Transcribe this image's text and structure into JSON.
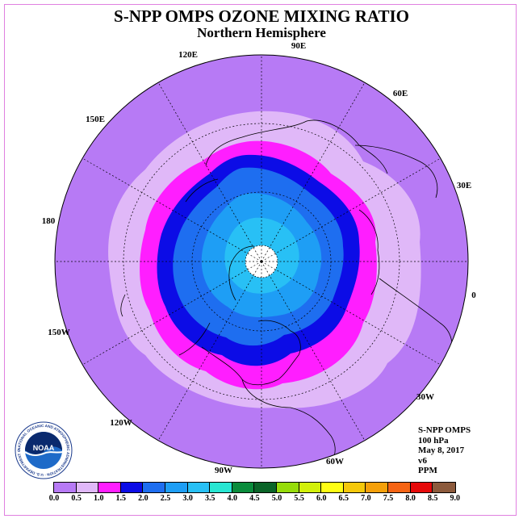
{
  "title": "S-NPP OMPS OZONE MIXING RATIO",
  "subtitle": "Northern Hemisphere",
  "longitude_labels": [
    "90E",
    "60E",
    "30E",
    "0",
    "30W",
    "60W",
    "90W",
    "120W",
    "150W",
    "180",
    "150E",
    "120E"
  ],
  "info": {
    "instrument": "S-NPP OMPS",
    "level": "100 hPa",
    "date": "May 8, 2017",
    "version": "v6",
    "units": "PPM"
  },
  "logo_text": "NOAA",
  "logo_ring_text": "NATIONAL OCEANIC AND ATMOSPHERIC ADMINISTRATION · U.S. DEPARTMENT OF COMMERCE",
  "colorbar": {
    "ticks": [
      "0.0",
      "0.5",
      "1.0",
      "1.5",
      "2.0",
      "2.5",
      "3.0",
      "3.5",
      "4.0",
      "4.5",
      "5.0",
      "5.5",
      "6.0",
      "6.5",
      "7.0",
      "7.5",
      "8.0",
      "8.5",
      "9.0"
    ],
    "colors": [
      "#b77af5",
      "#e0b8f8",
      "#ff1eff",
      "#0c0ce6",
      "#1e6ef0",
      "#1e9ef5",
      "#28c0f5",
      "#28e6d2",
      "#0a8c3c",
      "#0a6428",
      "#96dc0a",
      "#d2f00a",
      "#ffff14",
      "#f5c80a",
      "#f5a00a",
      "#f56414",
      "#e60a0a",
      "#8c5a3c"
    ]
  },
  "map_colors": {
    "background_field": "#b77af5",
    "lavender": "#e0b8f8",
    "magenta": "#ff1eff",
    "dark_blue": "#0c0ce6",
    "blue": "#1e6ef0",
    "light_blue": "#1e9ef5",
    "cyan": "#28c0f5",
    "pole_fill": "#ffffff"
  }
}
